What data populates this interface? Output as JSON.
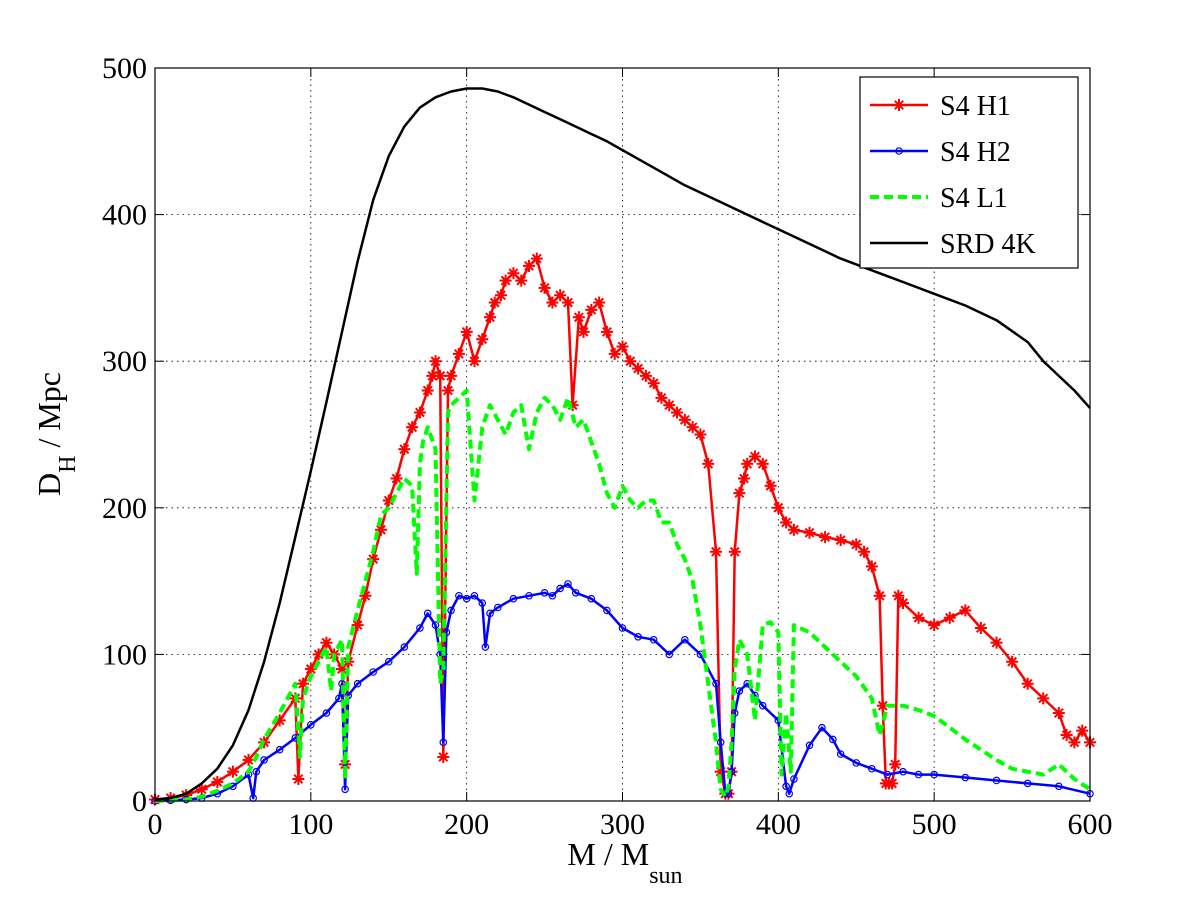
{
  "chart_data": {
    "type": "line",
    "title": "",
    "xlabel": "M / M",
    "xlabel_sub": "sun",
    "ylabel": "D",
    "ylabel_sub": "H",
    "ylabel_suffix": " / Mpc",
    "xlim": [
      0,
      600
    ],
    "ylim": [
      0,
      500
    ],
    "xticks": [
      0,
      100,
      200,
      300,
      400,
      500,
      600
    ],
    "yticks": [
      0,
      100,
      200,
      300,
      400,
      500
    ],
    "grid": true,
    "legend_position": "top-right",
    "series": [
      {
        "name": "S4 H1",
        "color": "#ff0000",
        "marker": "asterisk",
        "line": "solid",
        "x": [
          0,
          10,
          20,
          30,
          40,
          50,
          60,
          70,
          80,
          90,
          92,
          95,
          100,
          105,
          110,
          115,
          120,
          122,
          124,
          130,
          135,
          140,
          145,
          150,
          155,
          160,
          165,
          170,
          175,
          178,
          180,
          183,
          185,
          188,
          190,
          195,
          200,
          205,
          210,
          215,
          218,
          222,
          225,
          230,
          235,
          240,
          245,
          250,
          255,
          260,
          265,
          268,
          272,
          275,
          280,
          285,
          290,
          295,
          300,
          305,
          310,
          315,
          320,
          325,
          330,
          335,
          340,
          345,
          350,
          355,
          360,
          363,
          366,
          368,
          370,
          372,
          375,
          378,
          380,
          385,
          390,
          395,
          400,
          405,
          410,
          420,
          430,
          440,
          450,
          455,
          460,
          465,
          467,
          469,
          471,
          473,
          475,
          477,
          480,
          490,
          500,
          510,
          520,
          530,
          540,
          550,
          560,
          570,
          580,
          585,
          590,
          595,
          600
        ],
        "y": [
          1,
          2,
          4,
          8,
          13,
          20,
          28,
          40,
          55,
          70,
          15,
          80,
          90,
          100,
          108,
          100,
          90,
          25,
          95,
          120,
          140,
          165,
          185,
          205,
          220,
          240,
          255,
          265,
          280,
          290,
          300,
          290,
          30,
          280,
          290,
          305,
          320,
          300,
          315,
          330,
          340,
          345,
          355,
          360,
          355,
          365,
          370,
          350,
          340,
          345,
          340,
          270,
          330,
          320,
          335,
          340,
          320,
          305,
          310,
          300,
          295,
          290,
          285,
          275,
          270,
          265,
          260,
          255,
          250,
          230,
          170,
          20,
          5,
          5,
          20,
          170,
          210,
          220,
          230,
          235,
          230,
          215,
          200,
          190,
          185,
          183,
          180,
          178,
          175,
          170,
          160,
          140,
          65,
          12,
          12,
          12,
          25,
          140,
          135,
          125,
          120,
          125,
          130,
          118,
          108,
          95,
          80,
          70,
          60,
          45,
          40,
          48,
          40
        ]
      },
      {
        "name": "S4 H2",
        "color": "#0000ff",
        "marker": "circle",
        "line": "solid",
        "x": [
          0,
          10,
          20,
          30,
          40,
          50,
          60,
          63,
          65,
          70,
          80,
          90,
          100,
          110,
          118,
          120,
          122,
          124,
          130,
          140,
          150,
          160,
          170,
          175,
          180,
          183,
          185,
          187,
          190,
          195,
          200,
          205,
          210,
          212,
          215,
          220,
          230,
          240,
          250,
          255,
          260,
          265,
          270,
          280,
          290,
          300,
          310,
          320,
          330,
          340,
          350,
          360,
          363,
          366,
          368,
          370,
          372,
          375,
          380,
          385,
          390,
          400,
          405,
          407,
          410,
          420,
          428,
          435,
          440,
          450,
          460,
          470,
          480,
          490,
          500,
          520,
          540,
          560,
          580,
          600
        ],
        "y": [
          0,
          0.5,
          1,
          2,
          5,
          10,
          18,
          2,
          20,
          28,
          35,
          43,
          52,
          60,
          70,
          80,
          8,
          72,
          80,
          88,
          95,
          105,
          118,
          128,
          120,
          100,
          40,
          115,
          130,
          140,
          138,
          140,
          135,
          105,
          128,
          132,
          138,
          140,
          142,
          140,
          145,
          148,
          142,
          138,
          130,
          118,
          112,
          110,
          100,
          110,
          100,
          80,
          40,
          5,
          5,
          20,
          60,
          75,
          80,
          72,
          65,
          55,
          10,
          5,
          15,
          38,
          50,
          42,
          32,
          26,
          22,
          18,
          20,
          18,
          18,
          16,
          14,
          12,
          10,
          5
        ]
      },
      {
        "name": "S4 L1",
        "color": "#00ff00",
        "marker": "none",
        "line": "dashed",
        "x": [
          0,
          10,
          20,
          30,
          40,
          50,
          60,
          65,
          70,
          80,
          90,
          93,
          95,
          100,
          105,
          110,
          113,
          115,
          120,
          122,
          124,
          130,
          135,
          140,
          145,
          150,
          155,
          160,
          165,
          168,
          170,
          172,
          175,
          180,
          183,
          185,
          188,
          190,
          195,
          200,
          205,
          210,
          215,
          220,
          225,
          230,
          235,
          240,
          245,
          250,
          255,
          260,
          265,
          270,
          275,
          280,
          285,
          290,
          295,
          300,
          305,
          310,
          315,
          320,
          325,
          330,
          335,
          340,
          345,
          350,
          355,
          360,
          363,
          366,
          368,
          370,
          372,
          375,
          380,
          385,
          390,
          395,
          400,
          402,
          405,
          408,
          410,
          420,
          430,
          440,
          450,
          460,
          465,
          470,
          480,
          490,
          500,
          510,
          520,
          530,
          540,
          550,
          560,
          570,
          580,
          590,
          600
        ],
        "y": [
          0,
          0.5,
          1,
          3,
          7,
          12,
          20,
          30,
          42,
          60,
          80,
          30,
          70,
          85,
          95,
          105,
          75,
          100,
          110,
          15,
          105,
          130,
          150,
          170,
          195,
          200,
          210,
          220,
          215,
          155,
          230,
          245,
          255,
          240,
          80,
          90,
          265,
          270,
          275,
          280,
          205,
          255,
          270,
          260,
          250,
          265,
          270,
          240,
          265,
          275,
          270,
          260,
          275,
          255,
          260,
          245,
          230,
          210,
          200,
          215,
          205,
          200,
          205,
          205,
          190,
          190,
          175,
          165,
          150,
          120,
          80,
          40,
          8,
          3,
          10,
          40,
          90,
          110,
          100,
          55,
          120,
          122,
          115,
          18,
          60,
          20,
          120,
          115,
          105,
          95,
          85,
          70,
          45,
          65,
          65,
          62,
          58,
          50,
          42,
          35,
          28,
          22,
          20,
          18,
          25,
          15,
          8
        ]
      },
      {
        "name": "SRD 4K",
        "color": "#000000",
        "marker": "none",
        "line": "solid",
        "x": [
          0,
          10,
          20,
          30,
          40,
          50,
          60,
          70,
          80,
          90,
          100,
          110,
          120,
          130,
          140,
          150,
          160,
          170,
          180,
          190,
          200,
          210,
          220,
          230,
          240,
          250,
          260,
          270,
          280,
          290,
          300,
          320,
          340,
          360,
          380,
          400,
          420,
          440,
          460,
          480,
          500,
          520,
          540,
          560,
          570,
          580,
          590,
          600
        ],
        "y": [
          1,
          2,
          5,
          12,
          22,
          38,
          62,
          95,
          135,
          180,
          225,
          272,
          320,
          368,
          410,
          440,
          460,
          473,
          480,
          484,
          486,
          486,
          484,
          480,
          475,
          470,
          465,
          460,
          455,
          450,
          444,
          432,
          420,
          410,
          400,
          390,
          380,
          370,
          362,
          354,
          346,
          338,
          328,
          313,
          300,
          290,
          280,
          268
        ]
      }
    ]
  }
}
